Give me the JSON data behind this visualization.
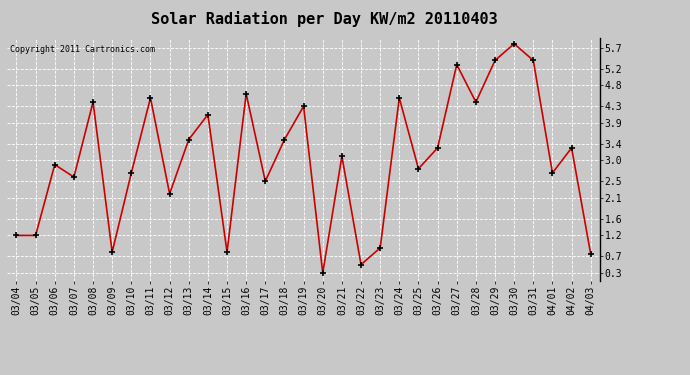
{
  "title": "Solar Radiation per Day KW/m2 20110403",
  "copyright": "Copyright 2011 Cartronics.com",
  "dates": [
    "03/04",
    "03/05",
    "03/06",
    "03/07",
    "03/08",
    "03/09",
    "03/10",
    "03/11",
    "03/12",
    "03/13",
    "03/14",
    "03/15",
    "03/16",
    "03/17",
    "03/18",
    "03/19",
    "03/20",
    "03/21",
    "03/22",
    "03/23",
    "03/24",
    "03/25",
    "03/26",
    "03/27",
    "03/28",
    "03/29",
    "03/30",
    "03/31",
    "04/01",
    "04/02",
    "04/03"
  ],
  "values": [
    1.2,
    1.2,
    2.9,
    2.6,
    4.4,
    0.8,
    2.7,
    4.5,
    2.2,
    3.5,
    4.1,
    0.8,
    4.6,
    2.5,
    3.5,
    4.3,
    0.3,
    3.1,
    0.5,
    0.9,
    4.5,
    2.8,
    3.3,
    5.3,
    4.4,
    5.4,
    5.8,
    5.4,
    2.7,
    3.3,
    0.75
  ],
  "line_color": "#cc0000",
  "marker_color": "#000000",
  "background_color": "#c8c8c8",
  "plot_bg_color": "#c8c8c8",
  "grid_color": "#ffffff",
  "yticks": [
    0.3,
    0.7,
    1.2,
    1.6,
    2.1,
    2.5,
    3.0,
    3.4,
    3.9,
    4.3,
    4.8,
    5.2,
    5.7
  ],
  "ylim": [
    0.1,
    5.95
  ],
  "title_fontsize": 11,
  "copyright_fontsize": 6,
  "tick_fontsize": 7
}
